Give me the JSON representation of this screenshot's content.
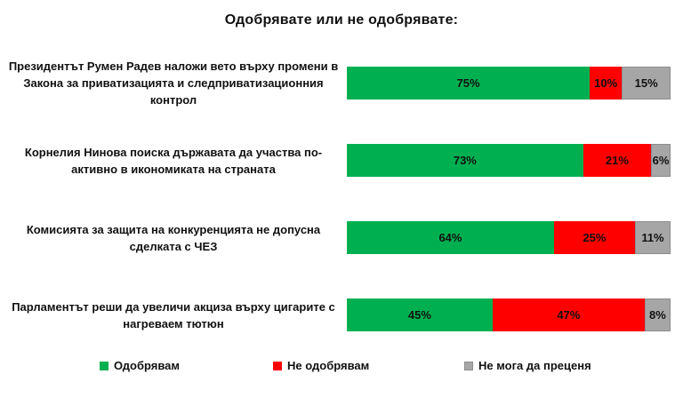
{
  "title": "Одобрявате или не одобрявате:",
  "chart_data": {
    "type": "bar",
    "orientation": "horizontal_stacked",
    "value_suffix": "%",
    "xlim": [
      0,
      100
    ],
    "grid": false,
    "legend_position": "bottom",
    "categories": [
      "Президентът Румен Радев наложи вето върху промени в Закона за приватизацията и следприватизационния контрол",
      "Корнелия Нинова поиска държавата да участва по-активно в икономиката на страната",
      "Комисията за защита на конкуренцията не допусна сделката с ЧЕЗ",
      "Парламентът реши да увеличи акциза върху цигарите с нагреваем тютюн"
    ],
    "series": [
      {
        "key": "approve",
        "name": "Одобрявам",
        "color": "#00B050",
        "values": [
          75,
          73,
          64,
          45
        ]
      },
      {
        "key": "disapprove",
        "name": "Не одобрявам",
        "color": "#FF0000",
        "values": [
          10,
          21,
          25,
          47
        ]
      },
      {
        "key": "cannot-judge",
        "name": "Не мога да преценя",
        "color": "#A6A6A6",
        "border": "#8C8C8C",
        "values": [
          15,
          6,
          11,
          8
        ]
      }
    ]
  }
}
